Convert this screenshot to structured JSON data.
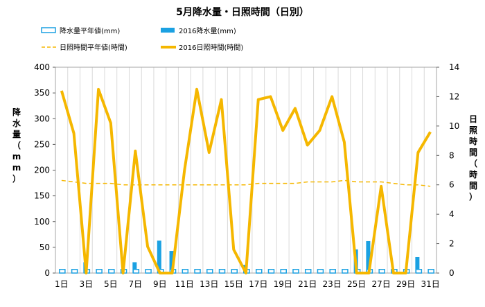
{
  "chart_data": {
    "type": "bar+line",
    "title": "5月降水量・日照時間（日別）",
    "legend": [
      {
        "label": "降水量平年値(mm)",
        "symbol": "bar-outline",
        "color": "#1BA1E2"
      },
      {
        "label": "2016降水量(mm)",
        "symbol": "bar-filled",
        "color": "#1BA1E2"
      },
      {
        "label": "日照時間平年値(時間)",
        "symbol": "line-dashed",
        "color": "#F5B700"
      },
      {
        "label": "2016日照時間(時間)",
        "symbol": "line-solid",
        "color": "#F5B700"
      }
    ],
    "ylabel_left": "降水量（mm）",
    "ylabel_right": "日照時間（時間）",
    "ylim_left": [
      0,
      400
    ],
    "ylim_right": [
      0,
      14
    ],
    "yticks_left": [
      "0",
      "50",
      "100",
      "150",
      "200",
      "250",
      "300",
      "350",
      "400"
    ],
    "yticks_right": [
      "0",
      "2",
      "4",
      "6",
      "8",
      "10",
      "12",
      "14"
    ],
    "xticks": [
      "1日",
      "3日",
      "5日",
      "7日",
      "9日",
      "11日",
      "13日",
      "15日",
      "17日",
      "19日",
      "21日",
      "23日",
      "25日",
      "27日",
      "29日",
      "31日"
    ],
    "days": [
      1,
      2,
      3,
      4,
      5,
      6,
      7,
      8,
      9,
      10,
      11,
      12,
      13,
      14,
      15,
      16,
      17,
      18,
      19,
      20,
      21,
      22,
      23,
      24,
      25,
      26,
      27,
      28,
      29,
      30,
      31
    ],
    "precip_normal": [
      7,
      7,
      7,
      7,
      7,
      7,
      7,
      7,
      7,
      7,
      7,
      7,
      7,
      7,
      7,
      7,
      7,
      7,
      7,
      7,
      7,
      7,
      7,
      7,
      7,
      7,
      7,
      7,
      7,
      7,
      7
    ],
    "precip_2016": [
      0,
      0,
      21,
      0,
      0,
      0,
      21,
      0,
      63,
      43,
      0,
      0,
      0,
      0,
      0,
      16,
      0,
      0,
      0,
      0,
      0,
      0,
      0,
      0,
      46,
      62,
      0,
      0,
      0,
      31,
      0
    ],
    "sunshine_normal": [
      6.3,
      6.2,
      6.1,
      6.1,
      6.1,
      6.0,
      6.0,
      6.0,
      6.0,
      6.0,
      6.0,
      6.0,
      6.0,
      6.0,
      6.0,
      6.0,
      6.1,
      6.1,
      6.1,
      6.1,
      6.2,
      6.2,
      6.2,
      6.3,
      6.2,
      6.2,
      6.2,
      6.1,
      6.0,
      6.0,
      5.9
    ],
    "sunshine_2016": [
      12.4,
      9.5,
      0,
      12.5,
      10.2,
      0,
      8.3,
      1.8,
      0,
      0,
      7.0,
      12.5,
      8.2,
      11.8,
      1.6,
      0,
      11.8,
      12.0,
      9.7,
      11.2,
      8.7,
      9.7,
      12.0,
      8.9,
      0,
      0,
      5.9,
      0,
      0,
      8.2,
      9.6
    ],
    "grid": "vertical",
    "legend_position": "top"
  }
}
